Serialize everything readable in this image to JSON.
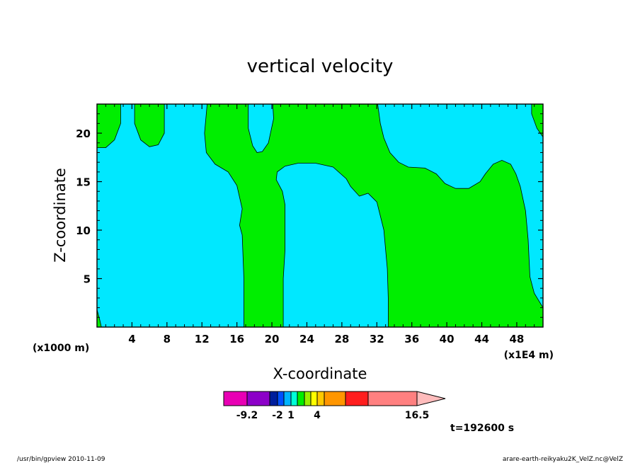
{
  "chart_data": {
    "type": "heatmap",
    "title": "vertical velocity",
    "xlabel": "X-coordinate",
    "ylabel": "Z-coordinate",
    "x_unit_left": "(x1000 m)",
    "x_unit_right": "(x1E4 m)",
    "xlim": [
      0,
      51
    ],
    "ylim": [
      0,
      23
    ],
    "x_ticks": [
      4,
      8,
      12,
      16,
      20,
      24,
      28,
      32,
      36,
      40,
      44,
      48
    ],
    "y_ticks": [
      5,
      10,
      15,
      20
    ],
    "background_color": "#00e8ff",
    "region_color": "#00ee00",
    "regions": [
      {
        "name": "green-band-left-top",
        "points": [
          [
            0,
            18.5
          ],
          [
            1,
            18.5
          ],
          [
            2,
            19.3
          ],
          [
            2.7,
            21
          ],
          [
            2.7,
            23
          ],
          [
            0,
            23
          ]
        ]
      },
      {
        "name": "green-band-top-6",
        "points": [
          [
            4.3,
            23
          ],
          [
            4.3,
            21
          ],
          [
            5,
            19.3
          ],
          [
            6,
            18.6
          ],
          [
            7,
            18.8
          ],
          [
            7.7,
            20
          ],
          [
            7.7,
            23
          ]
        ]
      },
      {
        "name": "green-large",
        "points": [
          [
            12.6,
            23
          ],
          [
            12.3,
            20
          ],
          [
            12.5,
            18
          ],
          [
            13.5,
            16.8
          ],
          [
            15,
            16
          ],
          [
            16,
            14.6
          ],
          [
            16.6,
            12.2
          ],
          [
            16.3,
            10.5
          ],
          [
            16.6,
            9.5
          ],
          [
            16.8,
            5
          ],
          [
            16.8,
            0
          ],
          [
            21.3,
            0
          ],
          [
            21.3,
            5
          ],
          [
            21.5,
            8
          ],
          [
            21.5,
            12.6
          ],
          [
            21.2,
            14
          ],
          [
            20.5,
            15.2
          ],
          [
            20.6,
            16
          ],
          [
            21.5,
            16.6
          ],
          [
            23,
            16.9
          ],
          [
            25,
            16.9
          ],
          [
            27,
            16.5
          ],
          [
            28.5,
            15.3
          ],
          [
            29,
            14.5
          ],
          [
            30,
            13.5
          ],
          [
            31,
            13.8
          ],
          [
            32,
            12.9
          ],
          [
            32.8,
            10
          ],
          [
            33.2,
            6
          ],
          [
            33.3,
            3
          ],
          [
            33.3,
            0
          ],
          [
            51,
            0
          ],
          [
            51,
            2
          ],
          [
            50,
            3.5
          ],
          [
            49.5,
            5.2
          ],
          [
            49.3,
            9
          ],
          [
            49,
            12
          ],
          [
            48.4,
            14.5
          ],
          [
            47.9,
            15.8
          ],
          [
            47.3,
            16.8
          ],
          [
            46.3,
            17.2
          ],
          [
            45.3,
            16.8
          ],
          [
            44.4,
            15.8
          ],
          [
            43.8,
            15
          ],
          [
            42.5,
            14.3
          ],
          [
            41,
            14.3
          ],
          [
            39.8,
            14.8
          ],
          [
            38.8,
            15.8
          ],
          [
            37.5,
            16.4
          ],
          [
            35.6,
            16.5
          ],
          [
            34.5,
            17
          ],
          [
            33.5,
            18
          ],
          [
            32.8,
            19.5
          ],
          [
            32.4,
            21
          ],
          [
            32.1,
            23
          ],
          [
            20.1,
            23
          ],
          [
            20.2,
            21.5
          ],
          [
            19.6,
            19
          ],
          [
            18.9,
            18.1
          ],
          [
            18.3,
            18
          ],
          [
            17.8,
            18.7
          ],
          [
            17.3,
            20.5
          ],
          [
            17.3,
            23
          ]
        ]
      },
      {
        "name": "green-right-edge",
        "points": [
          [
            49.7,
            23
          ],
          [
            49.7,
            22
          ],
          [
            50.3,
            20.5
          ],
          [
            51,
            19.6
          ],
          [
            51,
            23
          ]
        ]
      },
      {
        "name": "green-left-bottom",
        "points": [
          [
            0,
            1.8
          ],
          [
            0.3,
            0.8
          ],
          [
            0.5,
            0
          ],
          [
            0,
            0
          ]
        ]
      }
    ],
    "colorbar": {
      "labels": [
        "-9.2",
        "-2",
        "1",
        "4",
        "16.5"
      ],
      "colors": [
        "#e800b4",
        "#8c00c8",
        "#001e9c",
        "#0050ff",
        "#00b4ff",
        "#00ffd8",
        "#00ee00",
        "#9af000",
        "#ffff00",
        "#ffc800",
        "#ff9600",
        "#ff6400",
        "#ff1e1e",
        "#ff8080",
        "#ffbcbc"
      ]
    },
    "time_label": "t=192600 s",
    "footer_left": "/usr/bin/gpview  2010-11-09",
    "footer_right": "arare-earth-reikyaku2K_VelZ.nc@VelZ"
  }
}
